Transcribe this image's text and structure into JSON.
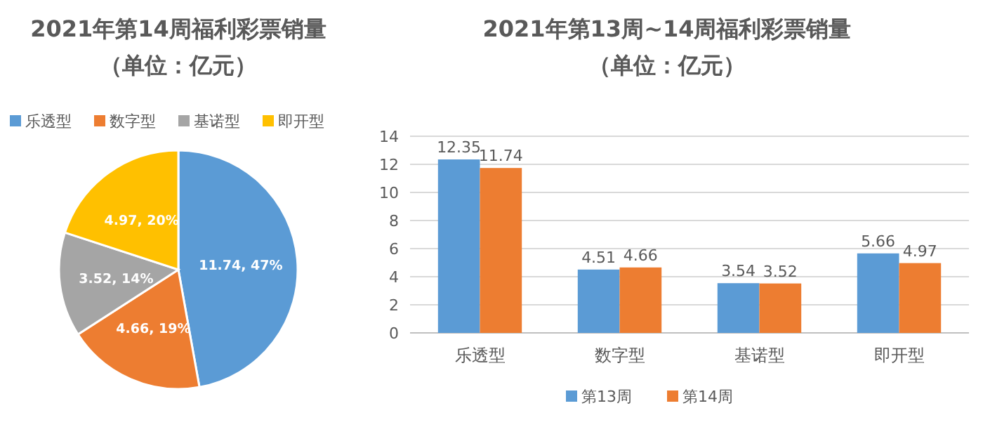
{
  "chart_data": [
    {
      "type": "pie",
      "title": "2021年第14周福利彩票销量",
      "subtitle": "（单位：亿元）",
      "categories": [
        "乐透型",
        "数字型",
        "基诺型",
        "即开型"
      ],
      "values": [
        11.74,
        4.66,
        3.52,
        4.97
      ],
      "value_labels": [
        "11.74, 47%",
        "4.66, 19%",
        "3.52, 14%",
        "4.97, 20%"
      ],
      "colors": [
        "#5b9bd5",
        "#ed7d31",
        "#a5a5a5",
        "#ffc000"
      ],
      "legend": "top"
    },
    {
      "type": "bar",
      "title": "2021年第13周~14周福利彩票销量",
      "subtitle": "（单位：亿元）",
      "categories": [
        "乐透型",
        "数字型",
        "基诺型",
        "即开型"
      ],
      "series": [
        {
          "name": "第13周",
          "color": "#5b9bd5",
          "values": [
            12.35,
            4.51,
            3.54,
            5.66
          ]
        },
        {
          "name": "第14周",
          "color": "#ed7d31",
          "values": [
            11.74,
            4.66,
            3.52,
            4.97
          ]
        }
      ],
      "ylim": [
        0,
        14
      ],
      "yticks": [
        0,
        2,
        4,
        6,
        8,
        10,
        12,
        14
      ],
      "grid": "y",
      "legend": "bottom",
      "data_labels": true
    }
  ]
}
